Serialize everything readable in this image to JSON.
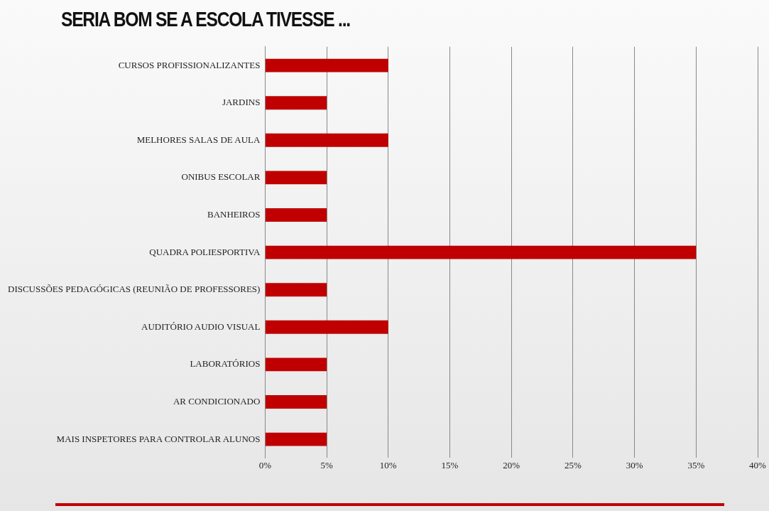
{
  "chart_data": {
    "type": "bar",
    "orientation": "horizontal",
    "title": "SERIA BOM SE A ESCOLA TIVESSE ...",
    "categories": [
      "CURSOS PROFISSIONALIZANTES",
      "JARDINS",
      "MELHORES SALAS DE AULA",
      "ONIBUS ESCOLAR",
      "BANHEIROS",
      "QUADRA POLIESPORTIVA",
      "DISCUSSÕES PEDAGÓGICAS (REUNIÃO DE PROFESSORES)",
      "AUDITÓRIO AUDIO VISUAL",
      "LABORATÓRIOS",
      "AR CONDICIONADO",
      "MAIS INSPETORES PARA CONTROLAR ALUNOS"
    ],
    "values": [
      10,
      5,
      10,
      5,
      5,
      35,
      5,
      10,
      5,
      5,
      5
    ],
    "color": "#c00000",
    "xlim": [
      0,
      40
    ],
    "xticks": [
      {
        "value": 0,
        "label": "0%"
      },
      {
        "value": 5,
        "label": "5%"
      },
      {
        "value": 10,
        "label": "10%"
      },
      {
        "value": 15,
        "label": "15%"
      },
      {
        "value": 20,
        "label": "20%"
      },
      {
        "value": 25,
        "label": "25%"
      },
      {
        "value": 30,
        "label": "30%"
      },
      {
        "value": 35,
        "label": "35%"
      },
      {
        "value": 40,
        "label": "40%"
      }
    ],
    "grid": "x"
  }
}
